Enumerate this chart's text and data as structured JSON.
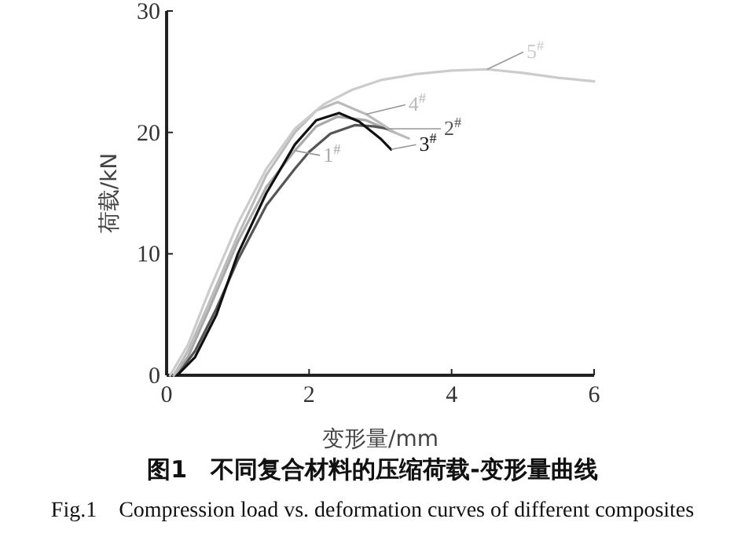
{
  "chart_data": {
    "type": "line",
    "title": "图1　不同复合材料的压缩荷载-变形量曲线",
    "subtitle": "Fig.1　Compression load vs. deformation curves of different composites",
    "xlabel": "变形量/mm",
    "ylabel": "荷载/kN",
    "xlim": [
      0,
      6
    ],
    "ylim": [
      0,
      30
    ],
    "xticks": [
      0,
      2,
      4,
      6
    ],
    "yticks": [
      0,
      10,
      20,
      30
    ],
    "marker": "none",
    "line_style": "solid",
    "series": [
      {
        "name": "1$^{#}$",
        "color": "#aaaaaa",
        "x": [
          0.1,
          0.3,
          0.6,
          1.0,
          1.4,
          1.8,
          2.1,
          2.4,
          2.8,
          3.2
        ],
        "values": [
          0,
          1.5,
          5.5,
          11,
          15.5,
          18.5,
          20.5,
          21.3,
          21,
          20
        ]
      },
      {
        "name": "2$^{#}$",
        "color": "#555555",
        "x": [
          0.15,
          0.4,
          0.7,
          1.0,
          1.4,
          1.8,
          2.0,
          2.3,
          2.64,
          2.9,
          3.1
        ],
        "values": [
          0,
          2,
          5.5,
          9.5,
          14,
          17,
          18.4,
          19.9,
          20.6,
          20.5,
          20.3
        ]
      },
      {
        "name": "3$^{#}$",
        "color": "#111111",
        "x": [
          0.15,
          0.4,
          0.7,
          1.0,
          1.4,
          1.8,
          2.1,
          2.42,
          2.7,
          3.0,
          3.15
        ],
        "values": [
          0,
          1.5,
          5,
          10,
          15,
          19,
          21,
          21.6,
          20.9,
          19.5,
          18.6
        ]
      },
      {
        "name": "4$^{#}$",
        "color": "#bbbbbb",
        "x": [
          0.1,
          0.3,
          0.6,
          1.0,
          1.4,
          1.8,
          2.1,
          2.4,
          2.8,
          3.2,
          3.4
        ],
        "values": [
          0,
          2,
          6,
          11.5,
          16.5,
          20,
          21.8,
          22.5,
          21.5,
          20,
          19.5
        ]
      },
      {
        "name": "5$^{#}$",
        "color": "#cccccc",
        "x": [
          0.05,
          0.3,
          0.6,
          1.0,
          1.4,
          1.8,
          2.2,
          2.6,
          3.0,
          3.5,
          4.0,
          4.5,
          5.0,
          5.5,
          6.0
        ],
        "values": [
          0,
          2.5,
          7,
          12.5,
          17,
          20.3,
          22.3,
          23.5,
          24.3,
          24.8,
          25.1,
          25.2,
          24.9,
          24.5,
          24.2
        ]
      }
    ]
  }
}
